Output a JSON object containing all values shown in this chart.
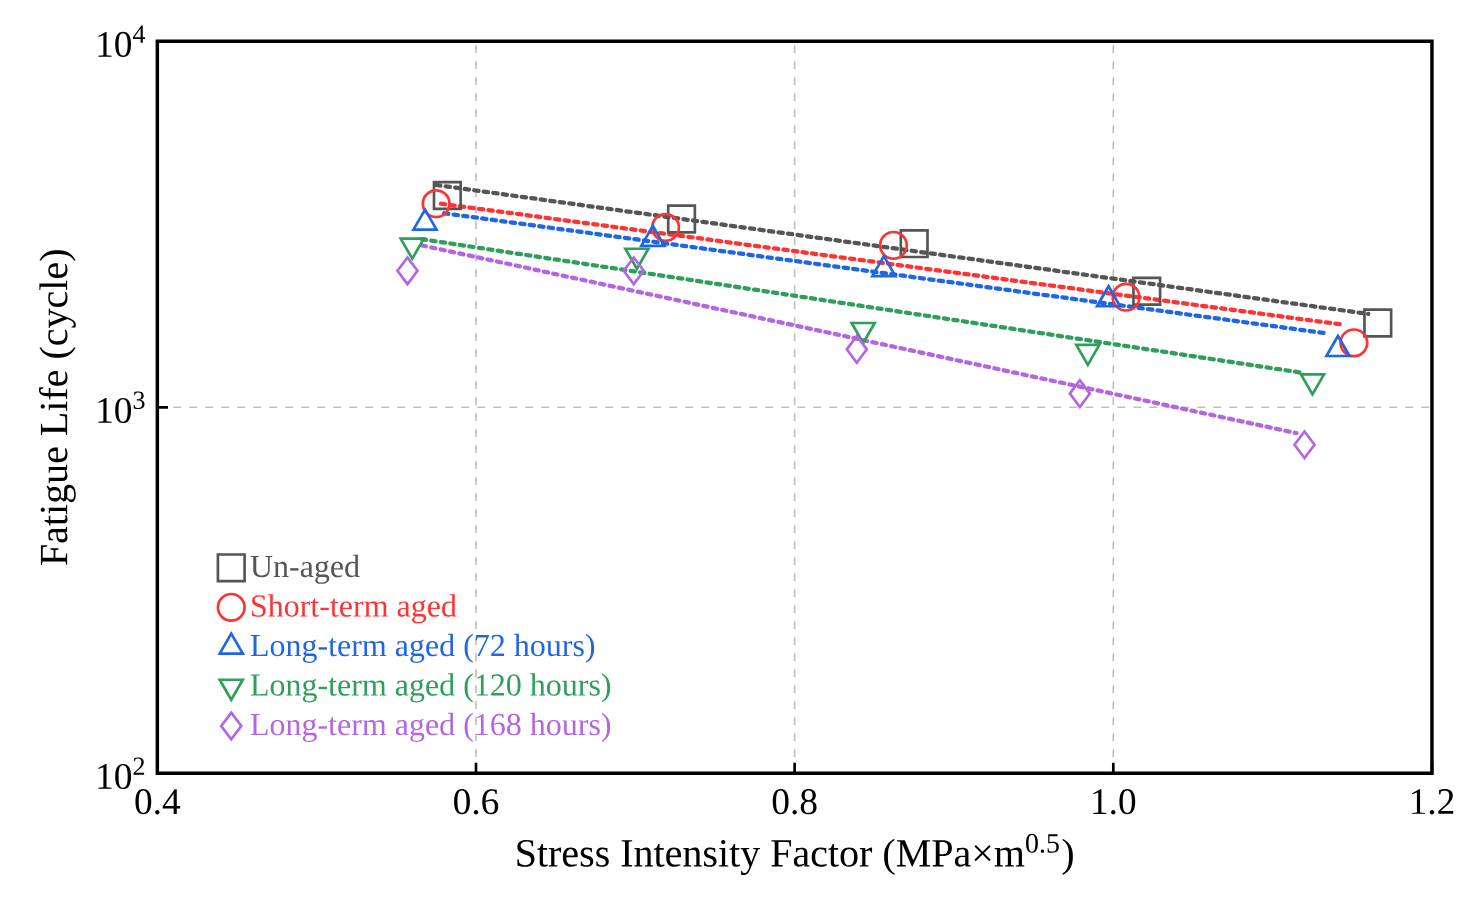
{
  "chart_data": {
    "type": "scatter",
    "xlabel": "Stress Intensity Factor (MPa×m$^{0.5}$)",
    "ylabel": "Fatigue Life (cycle)",
    "xlim": [
      0.4,
      1.2
    ],
    "ylim": [
      100,
      10000
    ],
    "log": "y",
    "grid": true,
    "legend": "bottom left",
    "xticks": [
      0.4,
      0.6,
      0.8,
      {
        "value": 1,
        "label": "1.0"
      },
      1.2
    ],
    "yticks": [
      {
        "value": 100,
        "label": "10$^{2}$"
      },
      {
        "value": 1000,
        "label": "10$^{3}$"
      },
      {
        "value": 10000,
        "label": "10$^{4}$"
      }
    ],
    "series": [
      {
        "name": "Un-aged",
        "marker": "square",
        "color": "#555555",
        "x": [
          0.582,
          0.729,
          0.875,
          1.021,
          1.166
        ],
        "values": [
          3790,
          3270,
          2800,
          2075,
          1700
        ]
      },
      {
        "name": "Short-term aged",
        "marker": "circle",
        "color": "#ff3333",
        "x": [
          0.575,
          0.719,
          0.862,
          1.008,
          1.151
        ],
        "values": [
          3600,
          3100,
          2770,
          2000,
          1500
        ]
      },
      {
        "name": "Long-term aged (72 hours)",
        "marker": "triangle",
        "color": "#1f66e5",
        "x": [
          0.568,
          0.711,
          0.856,
          0.997,
          1.141
        ],
        "values": [
          3190,
          2880,
          2380,
          1970,
          1440
        ]
      },
      {
        "name": "Long-term aged (120 hours)",
        "marker": "triangle-down",
        "color": "#2e9e5a",
        "x": [
          0.56,
          0.701,
          0.843,
          0.984,
          1.125
        ],
        "values": [
          2770,
          2600,
          1630,
          1420,
          1180
        ]
      },
      {
        "name": "Long-term aged (168 hours)",
        "marker": "diamond",
        "color": "#b366e0",
        "x": [
          0.557,
          0.699,
          0.839,
          0.979,
          1.12
        ],
        "values": [
          2360,
          2360,
          1440,
          1090,
          790
        ]
      },
      {
        "type": "line",
        "line_style": "dotted",
        "marker": "none",
        "color": "#555555",
        "x": [
          0.575,
          1.16
        ],
        "values": [
          4050,
          1800
        ]
      },
      {
        "type": "line",
        "line_style": "dotted",
        "marker": "none",
        "color": "#ff3333",
        "x": [
          0.578,
          1.145
        ],
        "values": [
          3600,
          1680
        ]
      },
      {
        "type": "line",
        "line_style": "dotted",
        "marker": "none",
        "color": "#1f66e5",
        "x": [
          0.58,
          1.135
        ],
        "values": [
          3390,
          1590
        ]
      },
      {
        "type": "line",
        "line_style": "dotted",
        "marker": "none",
        "color": "#2e9e5a",
        "x": [
          0.566,
          1.12
        ],
        "values": [
          2880,
          1240
        ]
      },
      {
        "type": "line",
        "line_style": "dotted",
        "marker": "none",
        "color": "#b366e0",
        "x": [
          0.566,
          1.115
        ],
        "values": [
          2770,
          850
        ]
      }
    ]
  }
}
